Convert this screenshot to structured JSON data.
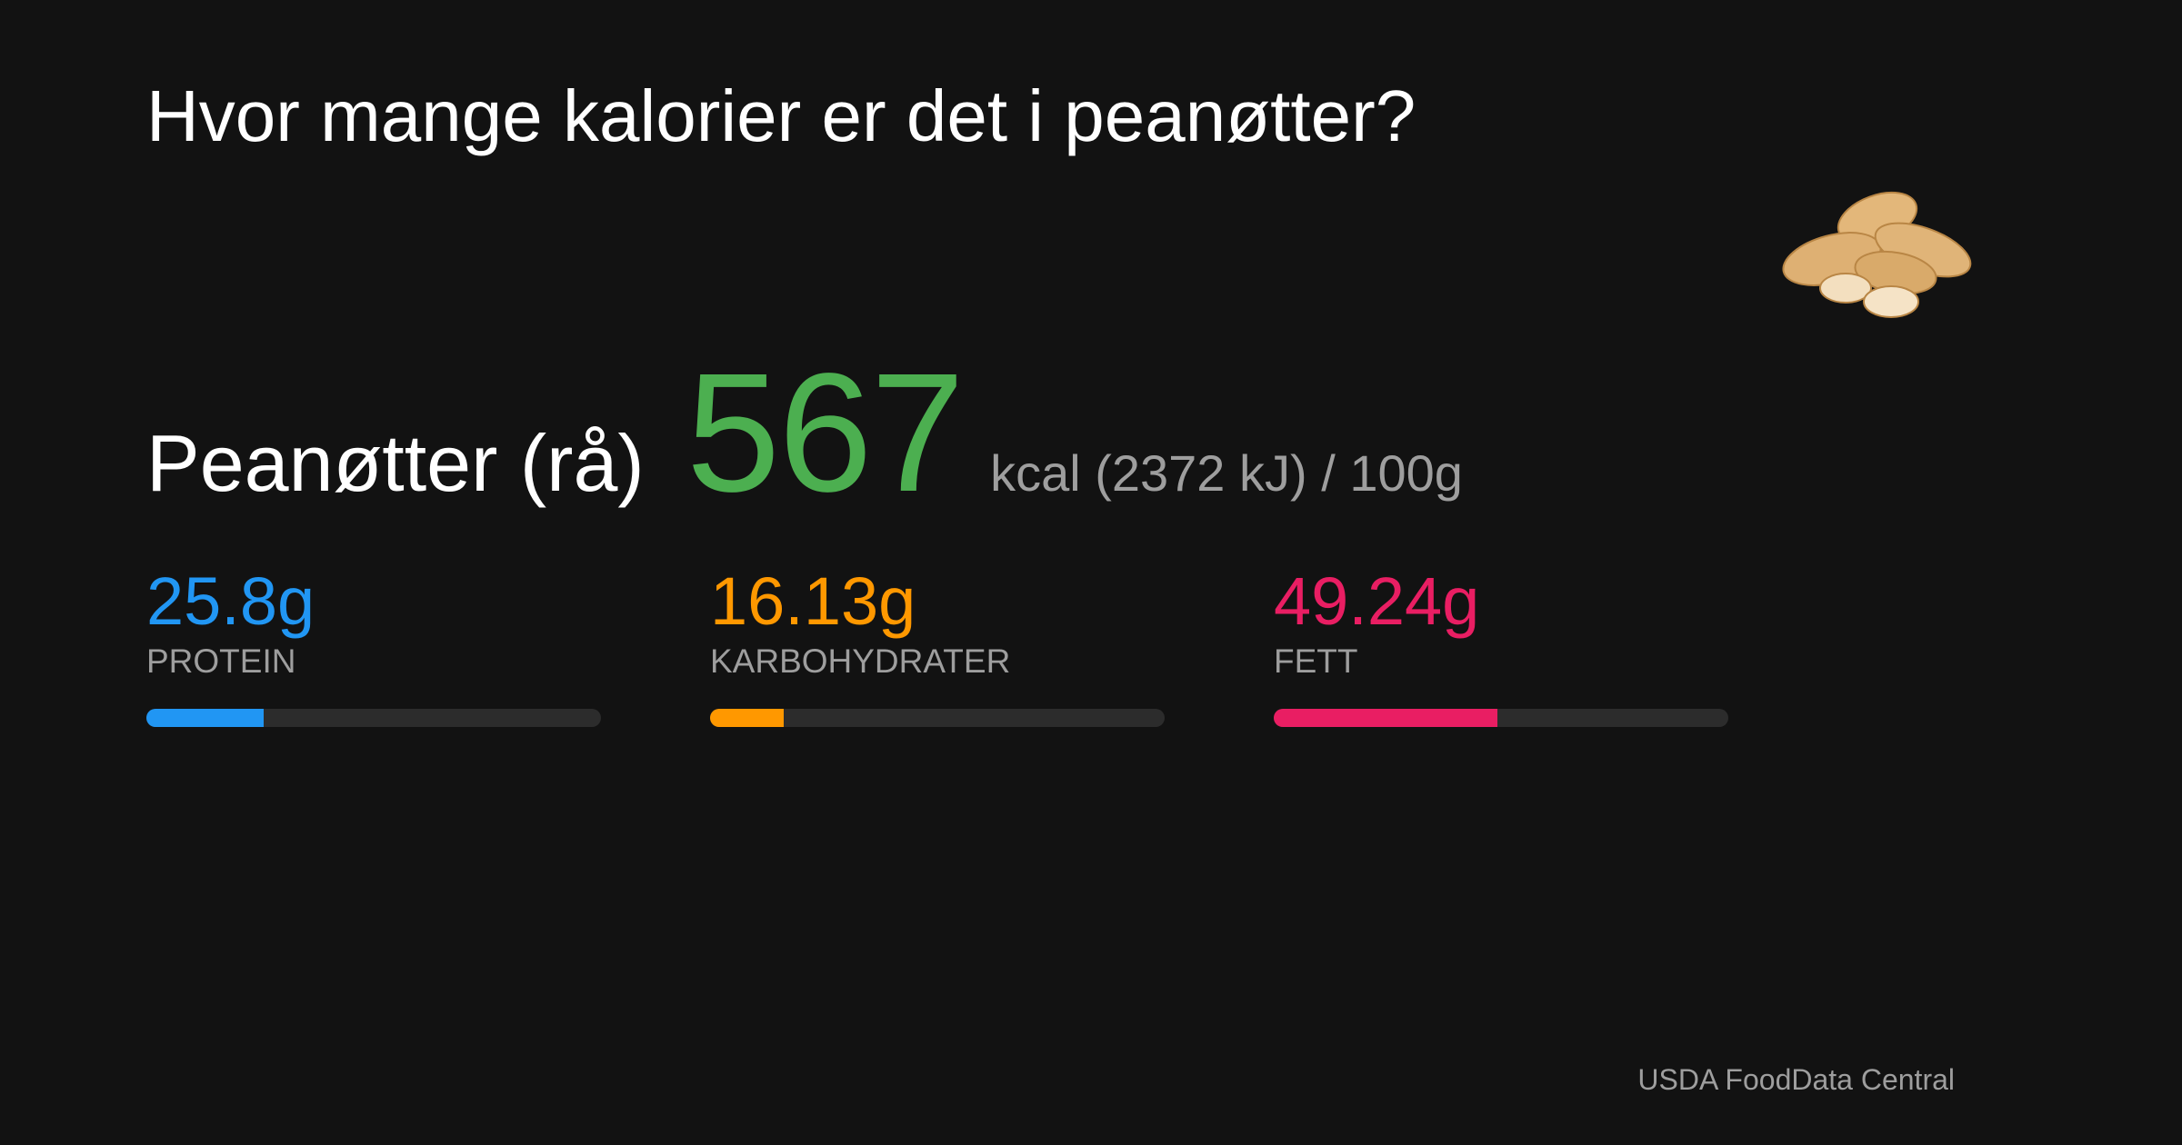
{
  "title": "Hvor mange kalorier er det i peanøtter?",
  "food": "Peanøtter (rå)",
  "energy": {
    "kcal": 567,
    "unit_text": "kcal (2372 kJ) / 100g",
    "color": "#4caf50"
  },
  "macro_scale": [
    0,
    100
  ],
  "macros": [
    {
      "name": "PROTEIN",
      "value": 25.8,
      "value_label": "25.8g",
      "color": "#2196f3"
    },
    {
      "name": "KARBOHYDRATER",
      "value": 16.13,
      "value_label": "16.13g",
      "color": "#ff9800"
    },
    {
      "name": "FETT",
      "value": 49.24,
      "value_label": "49.24g",
      "color": "#e91e63"
    }
  ],
  "source": "USDA FoodData Central"
}
